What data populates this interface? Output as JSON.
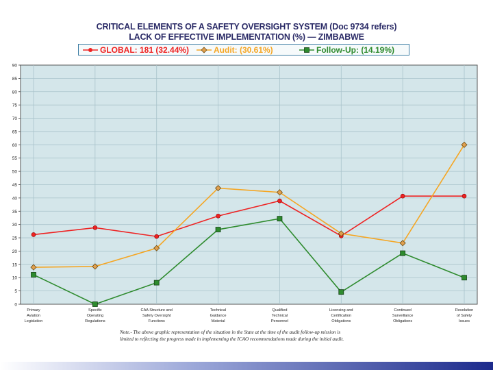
{
  "title": {
    "line1": "CRITICAL ELEMENTS OF A SAFETY OVERSIGHT SYSTEM (Doc 9734 refers)",
    "line2": "LACK OF EFFECTIVE IMPLEMENTATION (%) — ZIMBABWE"
  },
  "note": {
    "line1": "Note.- The above graphic representation of the situation in the State at the time of the audit follow-up mission is",
    "line2": "limited to reflecting the progress made in implementing the ICAO recommendations made during the initial audit."
  },
  "chart_data": {
    "type": "line",
    "title": "CRITICAL ELEMENTS OF A SAFETY OVERSIGHT SYSTEM (Doc 9734 refers) LACK OF EFFECTIVE IMPLEMENTATION (%) — ZIMBABWE",
    "xlabel": "",
    "ylabel": "",
    "ylim": [
      0,
      90
    ],
    "yticks": [
      0,
      5,
      10,
      15,
      20,
      25,
      30,
      35,
      40,
      45,
      50,
      55,
      60,
      65,
      70,
      75,
      80,
      85,
      90
    ],
    "grid": true,
    "legend_position": "top",
    "categories": [
      [
        "Primary",
        "Aviation",
        "Legislation"
      ],
      [
        "Specific",
        "Operating",
        "Regulations"
      ],
      [
        "CAA Structure and",
        "Safety Oversight",
        "Functions"
      ],
      [
        "Technical",
        "Guidance",
        "Material"
      ],
      [
        "Qualified",
        "Technical",
        "Personnel"
      ],
      [
        "Licensing and",
        "Certification",
        "Obligations"
      ],
      [
        "Continued",
        "Surveillance",
        "Obligations"
      ],
      [
        "Resolution",
        "of Safety",
        "Issues"
      ]
    ],
    "series": [
      {
        "name": "GLOBAL: 181 (32.44%)",
        "color": "#ee2222",
        "marker": "circle",
        "values": [
          26.2,
          28.8,
          25.5,
          33.2,
          38.9,
          25.7,
          40.7,
          40.7
        ]
      },
      {
        "name": "Audit: (30.61%)",
        "color": "#f5a623",
        "marker": "diamond",
        "values": [
          13.9,
          14.2,
          21.1,
          43.7,
          42.1,
          26.6,
          23.0,
          60.0
        ]
      },
      {
        "name": "Follow-Up: (14.19%)",
        "color": "#2e8b2e",
        "marker": "square",
        "values": [
          11.1,
          0.0,
          8.1,
          28.1,
          32.2,
          4.6,
          19.2,
          10.0
        ]
      }
    ],
    "colors": {
      "plot_bg": "#d4e6ea",
      "grid": "#a9c3cb",
      "title": "#2a2a66"
    }
  }
}
